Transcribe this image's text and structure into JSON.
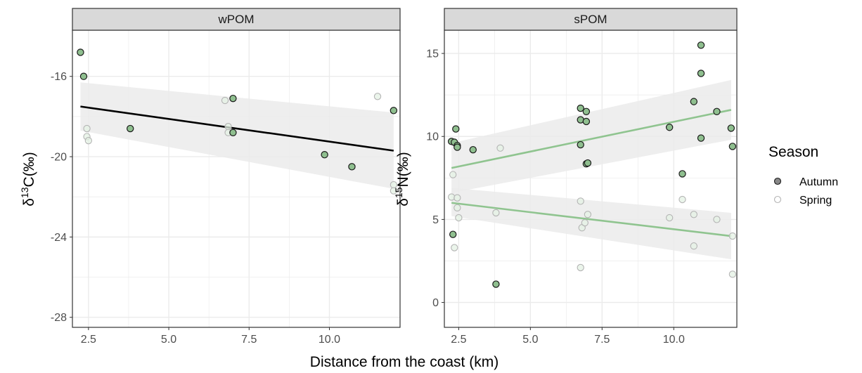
{
  "figure": {
    "xlabel": "Distance from the coast (km)",
    "legend": {
      "title": "Season",
      "position": "right"
    }
  },
  "colors": {
    "autumn_fill": "#8fbf8f",
    "autumn_stroke": "#1a1a1a",
    "spring_fill": "#e4f2e4",
    "spring_stroke": "#b4b4b4",
    "fit_wpom": "#000000",
    "fit_spom": "#8fc48f",
    "ribbon": "#ebebeb",
    "strip_bg": "#d9d9d9",
    "grid": "#ebebeb"
  },
  "chart_data": [
    {
      "type": "scatter",
      "panel": "wPOM",
      "xlabel": "Distance from the coast (km)",
      "ylabel": {
        "base": "δ",
        "sup": "13",
        "rest": "C(‰)"
      },
      "xlim": [
        2.0,
        12.2
      ],
      "ylim": [
        -28.5,
        -13.7
      ],
      "xticks": [
        2.5,
        5.0,
        7.5,
        10.0
      ],
      "xtick_labels": [
        "2.5",
        "5.0",
        "7.5",
        "10.0"
      ],
      "yticks": [
        -16,
        -20,
        -24,
        -28
      ],
      "ytick_labels": [
        "-16",
        "-20",
        "-24",
        "-28"
      ],
      "grid": true,
      "series": [
        {
          "name": "Autumn",
          "points": [
            [
              2.25,
              -14.8
            ],
            [
              2.35,
              -16.0
            ],
            [
              3.8,
              -18.6
            ],
            [
              7.0,
              -17.1
            ],
            [
              7.0,
              -18.8
            ],
            [
              9.85,
              -19.9
            ],
            [
              10.7,
              -20.5
            ],
            [
              12.0,
              -17.7
            ]
          ]
        },
        {
          "name": "Spring",
          "points": [
            [
              2.45,
              -18.6
            ],
            [
              2.45,
              -19.0
            ],
            [
              2.5,
              -19.2
            ],
            [
              6.75,
              -17.2
            ],
            [
              6.85,
              -18.5
            ],
            [
              6.85,
              -18.8
            ],
            [
              11.5,
              -17.0
            ],
            [
              12.0,
              -21.4
            ],
            [
              12.0,
              -21.7
            ]
          ]
        }
      ],
      "fits": [
        {
          "x": [
            2.25,
            12.0
          ],
          "y": [
            -17.5,
            -19.7
          ],
          "band_lower": [
            -18.7,
            -21.6
          ],
          "band_upper": [
            -16.3,
            -17.8
          ]
        }
      ]
    },
    {
      "type": "scatter",
      "panel": "sPOM",
      "xlabel": "Distance from the coast (km)",
      "ylabel": {
        "base": "δ",
        "sup": "15",
        "rest": "N(‰)"
      },
      "xlim": [
        2.0,
        12.2
      ],
      "ylim": [
        -1.5,
        16.4
      ],
      "xticks": [
        2.5,
        5.0,
        7.5,
        10.0
      ],
      "xtick_labels": [
        "2.5",
        "5.0",
        "7.5",
        "10.0"
      ],
      "yticks": [
        0,
        5,
        10,
        15
      ],
      "ytick_labels": [
        "0",
        "5",
        "10",
        "15"
      ],
      "grid": true,
      "series": [
        {
          "name": "Autumn",
          "points": [
            [
              2.25,
              9.7
            ],
            [
              2.35,
              9.65
            ],
            [
              2.45,
              9.45
            ],
            [
              2.45,
              9.35
            ],
            [
              2.4,
              10.45
            ],
            [
              3.0,
              9.2
            ],
            [
              2.3,
              4.1
            ],
            [
              3.8,
              1.1
            ],
            [
              6.75,
              11.7
            ],
            [
              6.75,
              11.0
            ],
            [
              6.95,
              11.5
            ],
            [
              6.95,
              10.9
            ],
            [
              6.75,
              9.5
            ],
            [
              6.95,
              8.35
            ],
            [
              7.0,
              8.4
            ],
            [
              9.85,
              10.55
            ],
            [
              10.3,
              7.75
            ],
            [
              10.7,
              12.1
            ],
            [
              10.95,
              15.5
            ],
            [
              10.95,
              13.8
            ],
            [
              10.95,
              9.9
            ],
            [
              11.5,
              11.5
            ],
            [
              12.0,
              10.5
            ],
            [
              12.05,
              9.4
            ]
          ]
        },
        {
          "name": "Spring",
          "points": [
            [
              2.25,
              6.35
            ],
            [
              2.3,
              7.7
            ],
            [
              2.35,
              3.3
            ],
            [
              2.45,
              6.3
            ],
            [
              2.45,
              5.7
            ],
            [
              2.5,
              5.1
            ],
            [
              3.8,
              5.4
            ],
            [
              3.95,
              9.3
            ],
            [
              6.75,
              6.1
            ],
            [
              6.8,
              4.5
            ],
            [
              6.9,
              4.8
            ],
            [
              7.0,
              5.3
            ],
            [
              6.75,
              2.1
            ],
            [
              9.85,
              5.1
            ],
            [
              10.3,
              6.2
            ],
            [
              10.7,
              5.3
            ],
            [
              10.7,
              3.4
            ],
            [
              11.5,
              5.0
            ],
            [
              12.05,
              4.0
            ],
            [
              12.05,
              1.7
            ]
          ]
        }
      ],
      "fits": [
        {
          "x": [
            2.25,
            12.0
          ],
          "y": [
            8.1,
            11.6
          ],
          "band_lower": [
            6.6,
            9.8
          ],
          "band_upper": [
            9.6,
            13.4
          ]
        },
        {
          "x": [
            2.25,
            12.0
          ],
          "y": [
            6.0,
            4.0
          ],
          "band_lower": [
            5.2,
            2.6
          ],
          "band_upper": [
            6.9,
            5.4
          ]
        }
      ]
    }
  ]
}
